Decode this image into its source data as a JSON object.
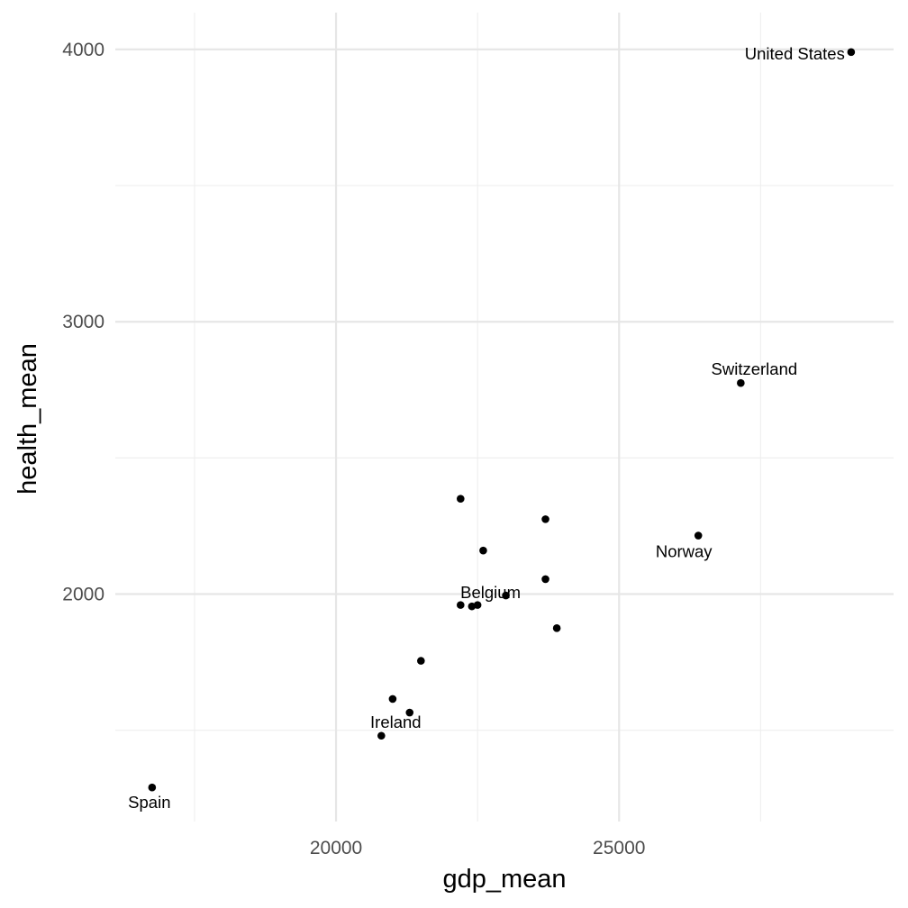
{
  "chart_data": {
    "type": "scatter",
    "title": "",
    "xlabel": "gdp_mean",
    "ylabel": "health_mean",
    "xlim": [
      16100,
      29850
    ],
    "ylim": [
      1165,
      4135
    ],
    "x_ticks": [
      20000,
      25000
    ],
    "x_tick_labels": [
      "20000",
      "25000"
    ],
    "x_minor_ticks": [
      17500,
      22500,
      27500
    ],
    "y_ticks": [
      2000,
      3000,
      4000
    ],
    "y_tick_labels": [
      "2000",
      "3000",
      "4000"
    ],
    "y_minor_ticks": [
      1500,
      2500,
      3500
    ],
    "grid": true,
    "legend": "none",
    "points": [
      {
        "x": 29100,
        "y": 3990,
        "label": "United States"
      },
      {
        "x": 27150,
        "y": 2775,
        "label": "Switzerland"
      },
      {
        "x": 26400,
        "y": 2215,
        "label": "Norway"
      },
      {
        "x": 23000,
        "y": 1995,
        "label": "Belgium"
      },
      {
        "x": 20800,
        "y": 1480,
        "label": "Ireland"
      },
      {
        "x": 16750,
        "y": 1290,
        "label": "Spain"
      },
      {
        "x": 22200,
        "y": 2350,
        "label": ""
      },
      {
        "x": 23700,
        "y": 2275,
        "label": ""
      },
      {
        "x": 22600,
        "y": 2160,
        "label": ""
      },
      {
        "x": 23700,
        "y": 2055,
        "label": ""
      },
      {
        "x": 22200,
        "y": 1960,
        "label": ""
      },
      {
        "x": 22400,
        "y": 1955,
        "label": ""
      },
      {
        "x": 22500,
        "y": 1960,
        "label": ""
      },
      {
        "x": 23900,
        "y": 1875,
        "label": ""
      },
      {
        "x": 21500,
        "y": 1755,
        "label": ""
      },
      {
        "x": 21000,
        "y": 1615,
        "label": ""
      },
      {
        "x": 21300,
        "y": 1565,
        "label": ""
      }
    ]
  }
}
